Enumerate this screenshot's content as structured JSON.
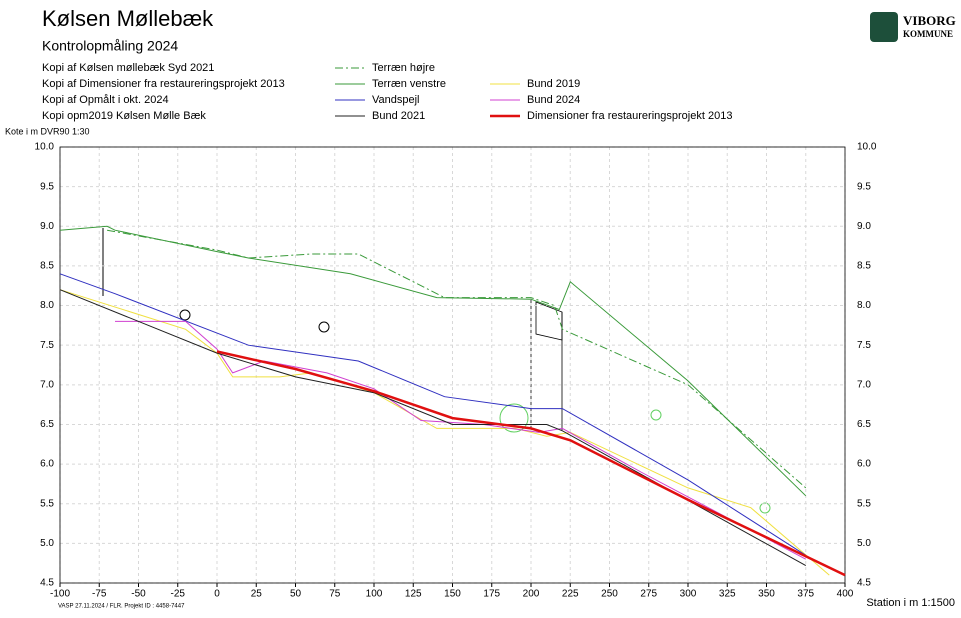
{
  "chart_data": {
    "type": "line",
    "title": "Kølsen Møllebæk",
    "subtitle": "Kontrolopmåling 2024",
    "sources": [
      "Kopi af Kølsen møllebæk Syd 2021",
      "Kopi af Dimensioner fra restaureringsprojekt 2013",
      "Kopi af Opmålt i okt. 2024",
      "Kopi opm2019 Kølsen Mølle Bæk"
    ],
    "y_label": "Kote i m DVR90 1:30",
    "x_label": "Station i m  1:1500",
    "footer": "VASP     27.11.2024 / FLR.  Projekt ID : 4458-7447",
    "logo": [
      "VIBORG",
      "KOMMUNE"
    ],
    "xlim": [
      -100,
      400
    ],
    "xticks": [
      -100,
      -75,
      -50,
      -25,
      0,
      25,
      50,
      75,
      100,
      125,
      150,
      175,
      200,
      225,
      250,
      275,
      300,
      325,
      350,
      375,
      400
    ],
    "ylim": [
      4.5,
      10
    ],
    "yticks": [
      4.5,
      {
        "value": 5,
        "label": "5.0"
      },
      5.5,
      {
        "value": 6,
        "label": "6.0"
      },
      6.5,
      {
        "value": 7,
        "label": "7.0"
      },
      7.5,
      {
        "value": 8,
        "label": "8.0"
      },
      8.5,
      {
        "value": 9,
        "label": "9.0"
      },
      9.5,
      {
        "value": 10,
        "label": "10.0"
      }
    ],
    "grid": true,
    "series": [
      {
        "name": "Terræn højre",
        "color": "#3a9a3a",
        "dash": "8,3,2,3",
        "x": [
          -70,
          0,
          20,
          60,
          90,
          145,
          200,
          215,
          220,
          300,
          375
        ],
        "values": [
          8.95,
          8.7,
          8.6,
          8.65,
          8.65,
          8.1,
          8.1,
          8.0,
          7.7,
          7.0,
          5.7
        ]
      },
      {
        "name": "Terræn venstre",
        "color": "#3a9a3a",
        "x": [
          -100,
          -70,
          -65,
          0,
          20,
          85,
          140,
          200,
          218,
          225,
          300,
          375
        ],
        "values": [
          8.95,
          9.0,
          8.95,
          8.68,
          8.6,
          8.4,
          8.1,
          8.08,
          7.95,
          8.3,
          7.05,
          5.6
        ]
      },
      {
        "name": "Bund 2019",
        "color": "#f0e040",
        "x": [
          -100,
          -20,
          0,
          10,
          40,
          60,
          100,
          140,
          190,
          210,
          225,
          300,
          340,
          390
        ],
        "values": [
          8.2,
          7.7,
          7.4,
          7.1,
          7.1,
          7.15,
          6.9,
          6.45,
          6.45,
          6.35,
          6.4,
          5.7,
          5.45,
          4.6
        ]
      },
      {
        "name": "Vandspejl",
        "color": "#3030c0",
        "x": [
          -100,
          -65,
          20,
          90,
          145,
          200,
          205,
          220,
          300,
          375
        ],
        "values": [
          8.4,
          8.15,
          7.5,
          7.3,
          6.85,
          6.7,
          6.7,
          6.7,
          5.8,
          4.85
        ]
      },
      {
        "name": "Bund 2024",
        "color": "#d040d0",
        "x": [
          -65,
          -20,
          0,
          10,
          30,
          70,
          100,
          130,
          170,
          205,
          220,
          270,
          375
        ],
        "values": [
          7.8,
          7.8,
          7.45,
          7.15,
          7.3,
          7.15,
          6.95,
          6.55,
          6.5,
          6.4,
          6.45,
          5.9,
          4.8
        ]
      },
      {
        "name": "Bund 2021",
        "color": "#202020",
        "x": [
          -100,
          0,
          50,
          100,
          150,
          210,
          220,
          375
        ],
        "values": [
          8.2,
          7.4,
          7.1,
          6.9,
          6.5,
          6.5,
          6.42,
          4.72
        ]
      },
      {
        "name": "Dimensioner fra restaureringsprojekt 2013",
        "color": "#e01010",
        "width": 2.5,
        "x": [
          0,
          50,
          100,
          150,
          200,
          225,
          300,
          400
        ],
        "values": [
          7.42,
          7.2,
          6.92,
          6.58,
          6.45,
          6.3,
          5.55,
          4.6
        ]
      }
    ]
  }
}
